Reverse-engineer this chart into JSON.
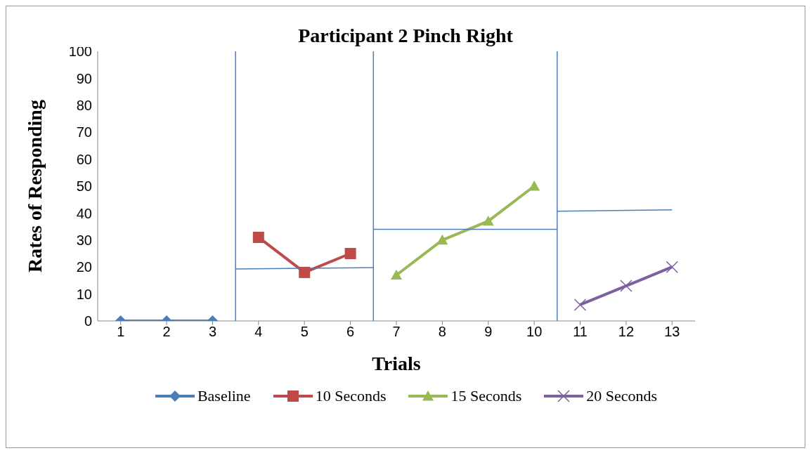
{
  "chart_data": {
    "type": "line",
    "title": "Participant 2 Pinch Right",
    "xlabel": "Trials",
    "ylabel": "Rates of Responding",
    "xlim": [
      0.5,
      13.5
    ],
    "xticks": [
      1,
      2,
      3,
      4,
      5,
      6,
      7,
      8,
      9,
      10,
      11,
      12,
      13
    ],
    "ylim": [
      0,
      100
    ],
    "yticks": [
      0,
      10,
      20,
      30,
      40,
      50,
      60,
      70,
      80,
      90,
      100
    ],
    "grid": false,
    "legend": "bottom",
    "line_style": "solid",
    "series": [
      {
        "name": "Baseline",
        "color": "#4a7ebb",
        "marker": "diamond",
        "x": [
          1,
          2,
          3
        ],
        "values": [
          0,
          0,
          0
        ]
      },
      {
        "name": "10 Seconds",
        "color": "#be4b48",
        "marker": "square",
        "x": [
          4,
          5,
          6
        ],
        "values": [
          31,
          18,
          25
        ]
      },
      {
        "name": "15 Seconds",
        "color": "#98b954",
        "marker": "triangle",
        "x": [
          7,
          8,
          9,
          10
        ],
        "values": [
          17,
          30,
          37,
          50
        ]
      },
      {
        "name": "20 Seconds",
        "color": "#7d60a0",
        "marker": "cross",
        "x": [
          11,
          12,
          13
        ],
        "values": [
          6,
          13,
          20
        ]
      },
      {
        "color": "#4a7ebb",
        "marker": "none",
        "x": [
          3.5,
          6.5
        ],
        "values": [
          19.3,
          19.8
        ]
      },
      {
        "color": "#4a7ebb",
        "marker": "none",
        "x": [
          6.5,
          10.5
        ],
        "values": [
          34,
          34
        ]
      },
      {
        "color": "#4a7ebb",
        "marker": "none",
        "x": [
          10.5,
          13
        ],
        "values": [
          40.7,
          41.2
        ]
      }
    ],
    "ref_lines": [
      {
        "axis": "x",
        "value": 3.5,
        "color": "#4a7ebb"
      },
      {
        "axis": "x",
        "value": 6.5,
        "color": "#4a7ebb"
      },
      {
        "axis": "x",
        "value": 10.5,
        "color": "#4a7ebb"
      }
    ]
  }
}
